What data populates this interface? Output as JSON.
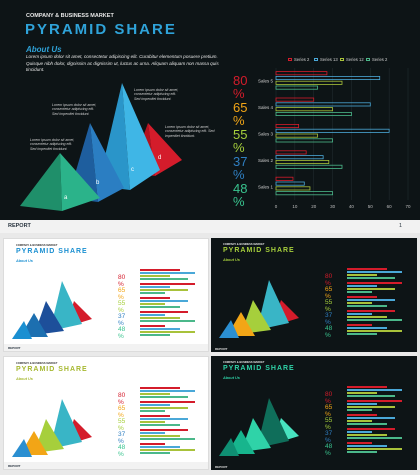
{
  "main": {
    "small_head": "COMPANY & BUSINESS MARKET",
    "title": "PYRAMID SHARE",
    "about_title": "About Us",
    "about_text_1": "Lorem ipsum dolor sit amet, consectetur adipiscing elit. Curabitur elementum posuere pretium.",
    "about_text_2": "Quisque nibh dolor, dignissim ac dignissim ut, luctus ac urna. Aliquam aliquam non massa quis tincidunt.",
    "callout_1": "Lorem ipsum dolor sit amet, consectetur adipiscing elit. Sed imperdiet tincidunt.",
    "callout_2": "Lorem ipsum dolor sit amet, consectetur adipiscing elit. Sed imperdiet tincidunt.",
    "callout_3": "Lorem ipsum dolor sit amet, consectetur adipiscing elit. Sed imperdiet tincidunt.",
    "callout_4": "Lorem ipsum dolor sit amet, consectetur adipiscing elit. Sed imperdiet tincidunt.",
    "pyramid_labels": [
      "a",
      "b",
      "c",
      "d"
    ],
    "footer_label": "REPORT",
    "page_number": "1"
  },
  "percents": [
    {
      "value": "80",
      "sign": "%",
      "color": "#d41c2b"
    },
    {
      "value": "65",
      "sign": "%",
      "color": "#f2a516"
    },
    {
      "value": "55",
      "sign": "%",
      "color": "#a6cf3c"
    },
    {
      "value": "37",
      "sign": "%",
      "color": "#2f7fc2"
    },
    {
      "value": "48",
      "sign": "%",
      "color": "#39c48f"
    }
  ],
  "chart_data": {
    "type": "bar",
    "orientation": "horizontal",
    "categories": [
      "Sales 5",
      "Sales 4",
      "Sales 3",
      "Sales 2",
      "Sales 1"
    ],
    "series": [
      {
        "name": "Series 2",
        "color": "#d41c2b",
        "values": [
          27,
          20,
          12,
          16,
          9
        ]
      },
      {
        "name": "Series 13",
        "color": "#4aa8d8",
        "values": [
          55,
          50,
          60,
          25,
          15
        ]
      },
      {
        "name": "Series 12",
        "color": "#a8c23a",
        "values": [
          35,
          30,
          22,
          28,
          18
        ]
      },
      {
        "name": "Series 2",
        "color": "#4bb88a",
        "values": [
          22,
          40,
          30,
          35,
          30
        ]
      }
    ],
    "xlim": [
      0,
      70
    ],
    "xticks": [
      "0",
      "10",
      "20",
      "30",
      "40",
      "50",
      "60",
      "70"
    ]
  },
  "thumbnails": [
    {
      "small_head": "COMPANY & BUSINESS MARKET",
      "title": "PYRAMID SHARE",
      "about": "About Us",
      "footer": "REPORT",
      "theme": "light",
      "colors": [
        "#1a8fd1",
        "#1c6fb0",
        "#1d4f9a",
        "#d41c2b",
        "#39b5c6"
      ]
    },
    {
      "small_head": "COMPANY & BUSINESS MARKET",
      "title": "PYRAMID SHARE",
      "about": "About Us",
      "footer": "REPORT",
      "theme": "dark",
      "colors": [
        "#2b8fd1",
        "#f2a516",
        "#a6cf3c",
        "#d41c2b",
        "#39b5c6"
      ]
    },
    {
      "small_head": "COMPANY & BUSINESS MARKET",
      "title": "PYRAMID SHARE",
      "about": "About Us",
      "footer": "REPORT",
      "theme": "light",
      "colors": [
        "#2b8fd1",
        "#f2a516",
        "#a6cf3c",
        "#d41c2b",
        "#39b5c6"
      ]
    },
    {
      "small_head": "COMPANY & BUSINESS MARKET",
      "title": "PYRAMID SHARE",
      "about": "About Us",
      "footer": "REPORT",
      "theme": "dark",
      "colors": [
        "#0f8f73",
        "#17b58d",
        "#2fd3a8",
        "#48e3c0",
        "#0f6e5a"
      ]
    }
  ]
}
